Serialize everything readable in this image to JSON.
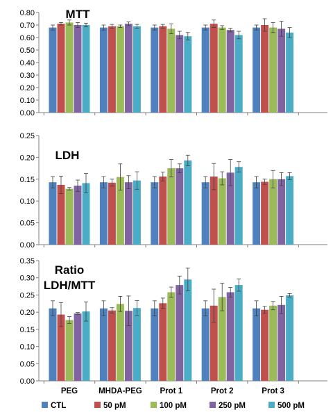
{
  "chart_data": [
    {
      "type": "bar",
      "title": "MTT",
      "categories": [
        "PEG",
        "MHDA-PEG",
        "Prot 1",
        "Prot 2",
        "Prot 3"
      ],
      "ylim": [
        0,
        0.8
      ],
      "yticks": [
        "0.00",
        "0.10",
        "0.20",
        "0.30",
        "0.40",
        "0.50",
        "0.60",
        "0.70",
        "0.80"
      ],
      "grid": false,
      "series": [
        {
          "name": "CTL",
          "values": [
            0.68,
            0.68,
            0.68,
            0.68,
            0.68
          ],
          "errors": [
            0.02,
            0.02,
            0.02,
            0.02,
            0.02
          ]
        },
        {
          "name": "50 pM",
          "values": [
            0.71,
            0.69,
            0.69,
            0.71,
            0.7
          ],
          "errors": [
            0.01,
            0.015,
            0.015,
            0.03,
            0.05
          ]
        },
        {
          "name": "100 pM",
          "values": [
            0.72,
            0.69,
            0.67,
            0.68,
            0.68
          ],
          "errors": [
            0.02,
            0.01,
            0.04,
            0.015,
            0.04
          ]
        },
        {
          "name": "250 pM",
          "values": [
            0.7,
            0.71,
            0.62,
            0.66,
            0.67
          ],
          "errors": [
            0.02,
            0.015,
            0.03,
            0.015,
            0.06
          ]
        },
        {
          "name": "500 pM",
          "values": [
            0.7,
            0.69,
            0.61,
            0.62,
            0.64
          ],
          "errors": [
            0.015,
            0.015,
            0.03,
            0.03,
            0.04
          ]
        }
      ]
    },
    {
      "type": "bar",
      "title": "LDH",
      "categories": [
        "PEG",
        "MHDA-PEG",
        "Prot 1",
        "Prot 2",
        "Prot 3"
      ],
      "ylim": [
        0,
        0.25
      ],
      "yticks": [
        "0.00",
        "0.05",
        "0.10",
        "0.15",
        "0.20",
        "0.25"
      ],
      "grid": false,
      "series": [
        {
          "name": "CTL",
          "values": [
            0.143,
            0.143,
            0.143,
            0.143,
            0.143
          ],
          "errors": [
            0.013,
            0.013,
            0.013,
            0.013,
            0.013
          ]
        },
        {
          "name": "50 pM",
          "values": [
            0.137,
            0.142,
            0.156,
            0.156,
            0.144
          ],
          "errors": [
            0.02,
            0.008,
            0.01,
            0.03,
            0.006
          ]
        },
        {
          "name": "100 pM",
          "values": [
            0.128,
            0.155,
            0.175,
            0.152,
            0.15
          ],
          "errors": [
            0.003,
            0.03,
            0.02,
            0.015,
            0.02
          ]
        },
        {
          "name": "250 pM",
          "values": [
            0.135,
            0.143,
            0.175,
            0.165,
            0.15
          ],
          "errors": [
            0.013,
            0.015,
            0.01,
            0.03,
            0.015
          ]
        },
        {
          "name": "500 pM",
          "values": [
            0.141,
            0.147,
            0.193,
            0.178,
            0.157
          ],
          "errors": [
            0.022,
            0.02,
            0.012,
            0.012,
            0.008
          ]
        }
      ]
    },
    {
      "type": "bar",
      "title": "Ratio",
      "title2": "LDH/MTT",
      "categories": [
        "PEG",
        "MHDA-PEG",
        "Prot 1",
        "Prot 2",
        "Prot 3"
      ],
      "ylim": [
        0,
        0.35
      ],
      "yticks": [
        "0.00",
        "0.05",
        "0.10",
        "0.15",
        "0.20",
        "0.25",
        "0.30",
        "0.35"
      ],
      "grid": false,
      "series": [
        {
          "name": "CTL",
          "values": [
            0.211,
            0.211,
            0.211,
            0.211,
            0.211
          ],
          "errors": [
            0.022,
            0.022,
            0.022,
            0.022,
            0.022
          ]
        },
        {
          "name": "50 pM",
          "values": [
            0.193,
            0.205,
            0.226,
            0.219,
            0.207
          ],
          "errors": [
            0.035,
            0.008,
            0.015,
            0.048,
            0.01
          ]
        },
        {
          "name": "100 pM",
          "values": [
            0.177,
            0.224,
            0.258,
            0.244,
            0.219
          ],
          "errors": [
            0.01,
            0.022,
            0.015,
            0.04,
            0.012
          ]
        },
        {
          "name": "250 pM",
          "values": [
            0.196,
            0.204,
            0.279,
            0.258,
            0.221
          ],
          "errors": [
            0.003,
            0.043,
            0.026,
            0.014,
            0.025
          ]
        },
        {
          "name": "500 pM",
          "values": [
            0.202,
            0.212,
            0.295,
            0.279,
            0.249
          ],
          "errors": [
            0.028,
            0.022,
            0.033,
            0.018,
            0.005
          ]
        }
      ]
    }
  ],
  "legend": {
    "placement": "bottom",
    "entries": [
      "CTL",
      "50 pM",
      "100 pM",
      "250 pM",
      "500 pM"
    ]
  },
  "colors": [
    "#4f81bd",
    "#c0504d",
    "#9bbb59",
    "#8064a2",
    "#4bacc6"
  ]
}
